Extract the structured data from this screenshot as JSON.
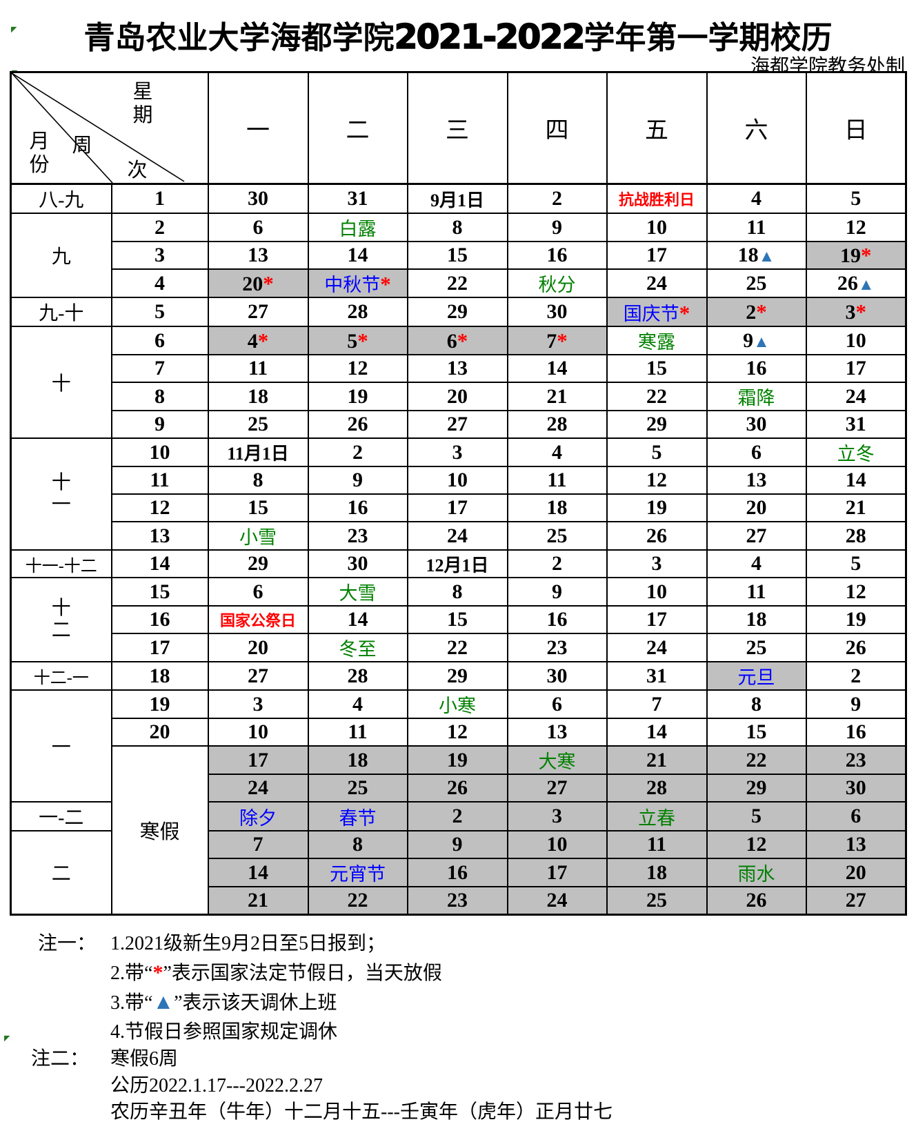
{
  "page": {
    "title_prefix": "青岛农业大学海都学院",
    "title_year": "2021-2022",
    "title_suffix": "学年第一学期校历",
    "subtitle": "海都学院教务处制"
  },
  "colors": {
    "holiday_bg": "#C0C0C0",
    "holiday_text": "#0000FF",
    "solar_term_text": "#008000",
    "memorial_day_text": "#FF0000",
    "legal_holiday_star": "#FF0000",
    "workday_triangle": "#2E75B6"
  },
  "table_header": {
    "weekday_label": "星期",
    "week_char_1": "周",
    "week_char_2": "次",
    "month_label": "月份",
    "weekdays": [
      "一",
      "二",
      "三",
      "四",
      "五",
      "六",
      "日"
    ]
  },
  "calendar": {
    "month_groups": [
      {
        "label": "八-九",
        "rows": 1
      },
      {
        "label": "九",
        "rows": 3
      },
      {
        "label": "九-十",
        "rows": 1
      },
      {
        "label": "十",
        "rows": 4
      },
      {
        "label": "十一",
        "rows": 4
      },
      {
        "label": "十一-十二",
        "rows": 1
      },
      {
        "label": "十二",
        "rows": 3
      },
      {
        "label": "十二-一",
        "rows": 1
      },
      {
        "label": "一",
        "rows": 4
      },
      {
        "label": "一-二",
        "rows": 1
      },
      {
        "label": "二",
        "rows": 3
      }
    ],
    "week_numbers": [
      "1",
      "2",
      "3",
      "4",
      "5",
      "6",
      "7",
      "8",
      "9",
      "10",
      "11",
      "12",
      "13",
      "14",
      "15",
      "16",
      "17",
      "18",
      "19",
      "20"
    ],
    "vacation_label": "寒假",
    "rows": [
      [
        {
          "d": "30"
        },
        {
          "d": "31"
        },
        {
          "d": "9月1日"
        },
        {
          "d": "2"
        },
        {
          "d": "抗战胜利日",
          "c": "red"
        },
        {
          "d": "4"
        },
        {
          "d": "5"
        }
      ],
      [
        {
          "d": "6"
        },
        {
          "d": "白露",
          "c": "green"
        },
        {
          "d": "8"
        },
        {
          "d": "9"
        },
        {
          "d": "10"
        },
        {
          "d": "11"
        },
        {
          "d": "12"
        }
      ],
      [
        {
          "d": "13"
        },
        {
          "d": "14"
        },
        {
          "d": "15"
        },
        {
          "d": "16"
        },
        {
          "d": "17"
        },
        {
          "d": "18",
          "s": "▲"
        },
        {
          "d": "19",
          "s": "*",
          "bg": 1
        }
      ],
      [
        {
          "d": "20",
          "s": "*",
          "bg": 1
        },
        {
          "d": "中秋节",
          "c": "blue",
          "s": "*",
          "bg": 1
        },
        {
          "d": "22"
        },
        {
          "d": "秋分",
          "c": "green"
        },
        {
          "d": "24"
        },
        {
          "d": "25"
        },
        {
          "d": "26",
          "s": "▲"
        }
      ],
      [
        {
          "d": "27"
        },
        {
          "d": "28"
        },
        {
          "d": "29"
        },
        {
          "d": "30"
        },
        {
          "d": "国庆节",
          "c": "blue",
          "s": "*",
          "bg": 1
        },
        {
          "d": "2",
          "s": "*",
          "bg": 1
        },
        {
          "d": "3",
          "s": "*",
          "bg": 1
        }
      ],
      [
        {
          "d": "4",
          "s": "*",
          "bg": 1
        },
        {
          "d": "5",
          "s": "*",
          "bg": 1
        },
        {
          "d": "6",
          "s": "*",
          "bg": 1
        },
        {
          "d": "7",
          "s": "*",
          "bg": 1
        },
        {
          "d": "寒露",
          "c": "green"
        },
        {
          "d": "9",
          "s": "▲"
        },
        {
          "d": "10"
        }
      ],
      [
        {
          "d": "11"
        },
        {
          "d": "12"
        },
        {
          "d": "13"
        },
        {
          "d": "14"
        },
        {
          "d": "15"
        },
        {
          "d": "16"
        },
        {
          "d": "17"
        }
      ],
      [
        {
          "d": "18"
        },
        {
          "d": "19"
        },
        {
          "d": "20"
        },
        {
          "d": "21"
        },
        {
          "d": "22"
        },
        {
          "d": "霜降",
          "c": "green"
        },
        {
          "d": "24"
        }
      ],
      [
        {
          "d": "25"
        },
        {
          "d": "26"
        },
        {
          "d": "27"
        },
        {
          "d": "28"
        },
        {
          "d": "29"
        },
        {
          "d": "30"
        },
        {
          "d": "31"
        }
      ],
      [
        {
          "d": "11月1日"
        },
        {
          "d": "2"
        },
        {
          "d": "3"
        },
        {
          "d": "4"
        },
        {
          "d": "5"
        },
        {
          "d": "6"
        },
        {
          "d": "立冬",
          "c": "green"
        }
      ],
      [
        {
          "d": "8"
        },
        {
          "d": "9"
        },
        {
          "d": "10"
        },
        {
          "d": "11"
        },
        {
          "d": "12"
        },
        {
          "d": "13"
        },
        {
          "d": "14"
        }
      ],
      [
        {
          "d": "15"
        },
        {
          "d": "16"
        },
        {
          "d": "17"
        },
        {
          "d": "18"
        },
        {
          "d": "19"
        },
        {
          "d": "20"
        },
        {
          "d": "21"
        }
      ],
      [
        {
          "d": "小雪",
          "c": "green"
        },
        {
          "d": "23"
        },
        {
          "d": "24"
        },
        {
          "d": "25"
        },
        {
          "d": "26"
        },
        {
          "d": "27"
        },
        {
          "d": "28"
        }
      ],
      [
        {
          "d": "29"
        },
        {
          "d": "30"
        },
        {
          "d": "12月1日"
        },
        {
          "d": "2"
        },
        {
          "d": "3"
        },
        {
          "d": "4"
        },
        {
          "d": "5"
        }
      ],
      [
        {
          "d": "6"
        },
        {
          "d": "大雪",
          "c": "green"
        },
        {
          "d": "8"
        },
        {
          "d": "9"
        },
        {
          "d": "10"
        },
        {
          "d": "11"
        },
        {
          "d": "12"
        }
      ],
      [
        {
          "d": "国家公祭日",
          "c": "red"
        },
        {
          "d": "14"
        },
        {
          "d": "15"
        },
        {
          "d": "16"
        },
        {
          "d": "17"
        },
        {
          "d": "18"
        },
        {
          "d": "19"
        }
      ],
      [
        {
          "d": "20"
        },
        {
          "d": "冬至",
          "c": "green"
        },
        {
          "d": "22"
        },
        {
          "d": "23"
        },
        {
          "d": "24"
        },
        {
          "d": "25"
        },
        {
          "d": "26"
        }
      ],
      [
        {
          "d": "27"
        },
        {
          "d": "28"
        },
        {
          "d": "29"
        },
        {
          "d": "30"
        },
        {
          "d": "31"
        },
        {
          "d": "元旦",
          "c": "blue",
          "bg": 1
        },
        {
          "d": "2"
        }
      ],
      [
        {
          "d": "3"
        },
        {
          "d": "4"
        },
        {
          "d": "小寒",
          "c": "green"
        },
        {
          "d": "6"
        },
        {
          "d": "7"
        },
        {
          "d": "8"
        },
        {
          "d": "9"
        }
      ],
      [
        {
          "d": "10"
        },
        {
          "d": "11"
        },
        {
          "d": "12"
        },
        {
          "d": "13"
        },
        {
          "d": "14"
        },
        {
          "d": "15"
        },
        {
          "d": "16"
        }
      ],
      [
        {
          "d": "17",
          "bg": 1
        },
        {
          "d": "18",
          "bg": 1
        },
        {
          "d": "19",
          "bg": 1
        },
        {
          "d": "大寒",
          "c": "green",
          "bg": 1
        },
        {
          "d": "21",
          "bg": 1
        },
        {
          "d": "22",
          "bg": 1
        },
        {
          "d": "23",
          "bg": 1
        }
      ],
      [
        {
          "d": "24",
          "bg": 1
        },
        {
          "d": "25",
          "bg": 1
        },
        {
          "d": "26",
          "bg": 1
        },
        {
          "d": "27",
          "bg": 1
        },
        {
          "d": "28",
          "bg": 1
        },
        {
          "d": "29",
          "bg": 1
        },
        {
          "d": "30",
          "bg": 1
        }
      ],
      [
        {
          "d": "除夕",
          "c": "blue",
          "bg": 1
        },
        {
          "d": "春节",
          "c": "blue",
          "bg": 1
        },
        {
          "d": "2",
          "bg": 1
        },
        {
          "d": "3",
          "bg": 1
        },
        {
          "d": "立春",
          "c": "green",
          "bg": 1
        },
        {
          "d": "5",
          "bg": 1
        },
        {
          "d": "6",
          "bg": 1
        }
      ],
      [
        {
          "d": "7",
          "bg": 1
        },
        {
          "d": "8",
          "bg": 1
        },
        {
          "d": "9",
          "bg": 1
        },
        {
          "d": "10",
          "bg": 1
        },
        {
          "d": "11",
          "bg": 1
        },
        {
          "d": "12",
          "bg": 1
        },
        {
          "d": "13",
          "bg": 1
        }
      ],
      [
        {
          "d": "14",
          "bg": 1
        },
        {
          "d": "元宵节",
          "c": "blue",
          "bg": 1
        },
        {
          "d": "16",
          "bg": 1
        },
        {
          "d": "17",
          "bg": 1
        },
        {
          "d": "18",
          "bg": 1
        },
        {
          "d": "雨水",
          "c": "green",
          "bg": 1
        },
        {
          "d": "20",
          "bg": 1
        }
      ],
      [
        {
          "d": "21",
          "bg": 1
        },
        {
          "d": "22",
          "bg": 1
        },
        {
          "d": "23",
          "bg": 1
        },
        {
          "d": "24",
          "bg": 1
        },
        {
          "d": "25",
          "bg": 1
        },
        {
          "d": "26",
          "bg": 1
        },
        {
          "d": "27",
          "bg": 1
        }
      ]
    ]
  },
  "notes": {
    "note1_label": "注一：",
    "note1_item1": "1.2021级新生9月2日至5日报到；",
    "note1_item2_pre": "2.带“",
    "note1_item2_star": "*",
    "note1_item2_post": "”表示国家法定节假日，当天放假",
    "note1_item3_pre": "3.带“",
    "note1_item3_tri": "▲",
    "note1_item3_post": "”表示该天调休上班",
    "note1_item4": "4.节假日参照国家规定调休",
    "note2_label": "注二：",
    "note2_item1": "寒假6周",
    "note2_item2": "公历2022.1.17---2022.2.27",
    "note2_item3": "农历辛丑年（牛年）十二月十五---壬寅年（虎年）正月廿七"
  }
}
